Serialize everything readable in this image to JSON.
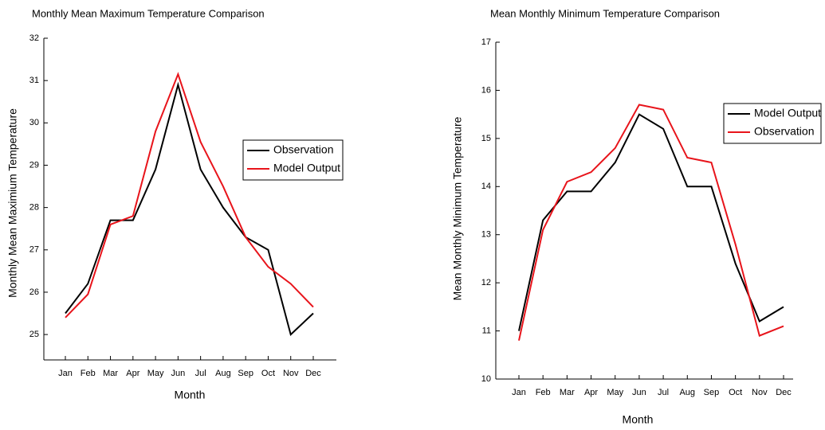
{
  "chart_data": [
    {
      "type": "line",
      "title": "Monthly Mean Maximum Temperature Comparison",
      "x_label": "Month",
      "y_label": "Monthly Mean Maximium Temperature",
      "categories": [
        "Jan",
        "Feb",
        "Mar",
        "Apr",
        "May",
        "Jun",
        "Jul",
        "Aug",
        "Sep",
        "Oct",
        "Nov",
        "Dec"
      ],
      "series": [
        {
          "name": "Observation",
          "color": "#000000",
          "values": [
            25.5,
            26.2,
            27.7,
            27.7,
            28.9,
            30.9,
            28.9,
            28.0,
            27.3,
            27.0,
            25.0,
            25.5
          ]
        },
        {
          "name": "Model Output",
          "color": "#e8141b",
          "values": [
            25.4,
            25.95,
            27.6,
            27.8,
            29.8,
            31.15,
            29.55,
            28.5,
            27.3,
            26.6,
            26.2,
            25.65
          ]
        }
      ],
      "ylim": [
        24.4,
        32
      ],
      "yticks": [
        25,
        26,
        27,
        28,
        29,
        30,
        31,
        32
      ],
      "legend": "right"
    },
    {
      "type": "line",
      "title": "Mean Monthly Minimum Temperature Comparison",
      "x_label": "Month",
      "y_label": "Mean Monthly Minimum Temperature",
      "categories": [
        "Jan",
        "Feb",
        "Mar",
        "Apr",
        "May",
        "Jun",
        "Jul",
        "Aug",
        "Sep",
        "Oct",
        "Nov",
        "Dec"
      ],
      "series": [
        {
          "name": "Model Output",
          "color": "#000000",
          "values": [
            11.0,
            13.3,
            13.9,
            13.9,
            14.5,
            15.5,
            15.2,
            14.0,
            14.0,
            12.4,
            11.2,
            11.5
          ]
        },
        {
          "name": "Observation",
          "color": "#e8141b",
          "values": [
            10.8,
            13.1,
            14.1,
            14.3,
            14.8,
            15.7,
            15.6,
            14.6,
            14.5,
            12.8,
            10.9,
            11.1
          ]
        }
      ],
      "ylim": [
        10,
        17
      ],
      "yticks": [
        10,
        11,
        12,
        13,
        14,
        15,
        16,
        17
      ],
      "legend": "upper right"
    }
  ]
}
